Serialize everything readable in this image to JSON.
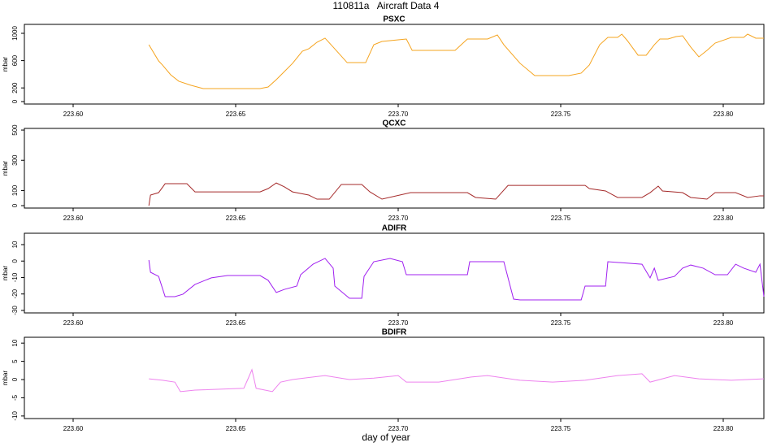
{
  "title": "110811a   Aircraft Data 4",
  "xlabel": "day of year",
  "chart_data": [
    {
      "type": "line",
      "title": "PSXC",
      "ylabel": "mbar",
      "color": "#f5a41f",
      "x": [
        223.6233,
        223.6263,
        223.6275,
        223.63,
        223.6325,
        223.6363,
        223.64,
        223.6575,
        223.66,
        223.6625,
        223.665,
        223.6675,
        223.6705,
        223.6725,
        223.675,
        223.6775,
        223.68,
        223.6843,
        223.69,
        223.6925,
        223.695,
        223.7,
        223.7025,
        223.7043,
        223.7075,
        223.7175,
        223.7213,
        223.7275,
        223.7305,
        223.7325,
        223.7375,
        223.742,
        223.7525,
        223.7563,
        223.7588,
        223.762,
        223.7645,
        223.7675,
        223.7688,
        223.7705,
        223.7738,
        223.7763,
        223.7788,
        223.7805,
        223.783,
        223.7855,
        223.7875,
        223.79,
        223.7925,
        223.795,
        223.7975,
        223.8025,
        223.8063,
        223.8075,
        223.81,
        223.8125
      ],
      "values": [
        833,
        595,
        535,
        393,
        298,
        238,
        190,
        190,
        214,
        321,
        440,
        560,
        738,
        774,
        869,
        929,
        798,
        571,
        571,
        833,
        881,
        905,
        917,
        750,
        750,
        750,
        917,
        917,
        976,
        833,
        560,
        381,
        381,
        417,
        536,
        833,
        940,
        940,
        988,
        893,
        679,
        679,
        833,
        917,
        917,
        952,
        964,
        798,
        655,
        750,
        857,
        940,
        940,
        988,
        929,
        929
      ],
      "xlim": [
        223.585,
        223.8125
      ],
      "ylim": [
        -36,
        1131
      ],
      "xticks": [
        {
          "value": 223.6,
          "label": "223.60"
        },
        {
          "value": 223.65,
          "label": "223.65"
        },
        {
          "value": 223.7,
          "label": "223.70"
        },
        {
          "value": 223.75,
          "label": "223.75"
        },
        {
          "value": 223.8,
          "label": "223.80"
        }
      ],
      "yticks": [
        0,
        200,
        600,
        1000
      ]
    },
    {
      "type": "line",
      "title": "QCXC",
      "ylabel": "mbar",
      "color": "#a52a2a",
      "x": [
        223.6233,
        223.6238,
        223.6263,
        223.6283,
        223.635,
        223.6375,
        223.6575,
        223.66,
        223.6625,
        223.665,
        223.6675,
        223.6725,
        223.675,
        223.6788,
        223.6825,
        223.6888,
        223.6913,
        223.695,
        223.7038,
        223.7213,
        223.7238,
        223.73,
        223.7338,
        223.7575,
        223.7588,
        223.7638,
        223.7675,
        223.775,
        223.7775,
        223.78,
        223.7813,
        223.7875,
        223.79,
        223.795,
        223.7975,
        223.8038,
        223.8075,
        223.8113,
        223.8125
      ],
      "values": [
        0,
        70,
        86,
        145,
        145,
        91,
        91,
        113,
        150,
        124,
        91,
        70,
        43,
        43,
        140,
        140,
        91,
        43,
        86,
        86,
        54,
        43,
        134,
        134,
        113,
        97,
        54,
        54,
        86,
        129,
        97,
        86,
        54,
        43,
        86,
        86,
        54,
        65,
        65
      ],
      "xlim": [
        223.585,
        223.8125
      ],
      "ylim": [
        -16,
        511
      ],
      "xticks": [
        {
          "value": 223.6,
          "label": "223.60"
        },
        {
          "value": 223.65,
          "label": "223.65"
        },
        {
          "value": 223.7,
          "label": "223.70"
        },
        {
          "value": 223.75,
          "label": "223.75"
        },
        {
          "value": 223.8,
          "label": "223.80"
        }
      ],
      "yticks": [
        0,
        100,
        300,
        500
      ]
    },
    {
      "type": "line",
      "title": "ADIFR",
      "ylabel": "mbar",
      "color": "#a020f0",
      "x": [
        223.6233,
        223.6238,
        223.6263,
        223.6283,
        223.6313,
        223.6338,
        223.6375,
        223.6425,
        223.6475,
        223.6575,
        223.66,
        223.6625,
        223.665,
        223.6688,
        223.67,
        223.6738,
        223.6775,
        223.68,
        223.6805,
        223.685,
        223.6888,
        223.6895,
        223.6925,
        223.6975,
        223.7013,
        223.7025,
        223.7213,
        223.722,
        223.7325,
        223.7355,
        223.7375,
        223.7563,
        223.7575,
        223.7638,
        223.7645,
        223.775,
        223.7775,
        223.7788,
        223.78,
        223.785,
        223.7875,
        223.79,
        223.7938,
        223.7975,
        223.8013,
        223.8038,
        223.8063,
        223.81,
        223.8113,
        223.8125
      ],
      "values": [
        0.6,
        -6.8,
        -9.3,
        -21.6,
        -21.6,
        -20.1,
        -14.2,
        -10.2,
        -8.8,
        -8.8,
        -11.7,
        -19.1,
        -17.2,
        -15.2,
        -8.3,
        -1.9,
        1.6,
        -4.3,
        -15.2,
        -22.6,
        -22.6,
        -9.3,
        -0.4,
        1.6,
        -0.4,
        -8.3,
        -8.3,
        -0.4,
        -0.4,
        -23.1,
        -23.6,
        -23.6,
        -15.2,
        -15.2,
        -0.4,
        -1.9,
        -10.2,
        -4.3,
        -11.7,
        -9.3,
        -4.3,
        -2.4,
        -4.3,
        -8.3,
        -8.3,
        -1.9,
        -4.3,
        -6.8,
        -1.9,
        -21.6
      ],
      "xlim": [
        223.585,
        223.8125
      ],
      "ylim": [
        -31.5,
        16.9
      ],
      "xticks": [
        {
          "value": 223.6,
          "label": "223.60"
        },
        {
          "value": 223.65,
          "label": "223.65"
        },
        {
          "value": 223.7,
          "label": "223.70"
        },
        {
          "value": 223.75,
          "label": "223.75"
        },
        {
          "value": 223.8,
          "label": "223.80"
        }
      ],
      "yticks": [
        -30,
        -20,
        -10,
        0,
        10
      ]
    },
    {
      "type": "line",
      "title": "BDIFR",
      "ylabel": "mbar",
      "color": "#ee82ee",
      "x": [
        223.6233,
        223.6275,
        223.6313,
        223.633,
        223.6375,
        223.6525,
        223.6538,
        223.655,
        223.6563,
        223.6613,
        223.6638,
        223.6675,
        223.6775,
        223.685,
        223.6925,
        223.7,
        223.7025,
        223.7125,
        223.7225,
        223.7275,
        223.7375,
        223.7475,
        223.7575,
        223.7675,
        223.775,
        223.7775,
        223.785,
        223.7925,
        223.8025,
        223.8125
      ],
      "values": [
        0.2,
        -0.2,
        -0.7,
        -3.3,
        -2.9,
        -2.4,
        0.2,
        2.7,
        -2.4,
        -3.3,
        -0.7,
        0,
        1.1,
        0,
        0.4,
        1.1,
        -0.7,
        -0.7,
        0.7,
        1.1,
        -0.2,
        -0.7,
        -0.2,
        1.1,
        1.6,
        -0.7,
        1.1,
        0.2,
        -0.2,
        0.2
      ],
      "xlim": [
        223.585,
        223.8125
      ],
      "ylim": [
        -10.7,
        11.6
      ],
      "xticks": [
        {
          "value": 223.6,
          "label": "223.60"
        },
        {
          "value": 223.65,
          "label": "223.65"
        },
        {
          "value": 223.7,
          "label": "223.70"
        },
        {
          "value": 223.75,
          "label": "223.75"
        },
        {
          "value": 223.8,
          "label": "223.80"
        }
      ],
      "yticks": [
        -10,
        -5,
        0,
        5,
        10
      ]
    }
  ]
}
